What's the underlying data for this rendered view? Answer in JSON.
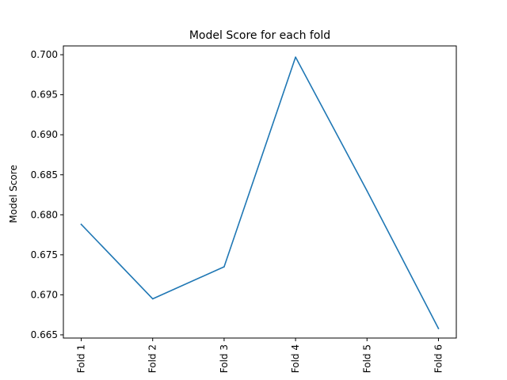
{
  "chart_data": {
    "type": "line",
    "title": "Model Score for each fold",
    "xlabel": "",
    "ylabel": "Model Score",
    "categories": [
      "Fold 1",
      "Fold 2",
      "Fold 3",
      "Fold 4",
      "Fold 5",
      "Fold 6"
    ],
    "series": [
      {
        "values": [
          0.6788,
          0.6695,
          0.6735,
          0.6997,
          0.683,
          0.6658
        ]
      }
    ],
    "ylim": [
      0.6646,
      0.7011
    ],
    "yticks": [
      "0.665",
      "0.670",
      "0.675",
      "0.680",
      "0.685",
      "0.690",
      "0.695",
      "0.700"
    ],
    "line_color": "#1f77b4",
    "grid": false,
    "legend": "none"
  }
}
